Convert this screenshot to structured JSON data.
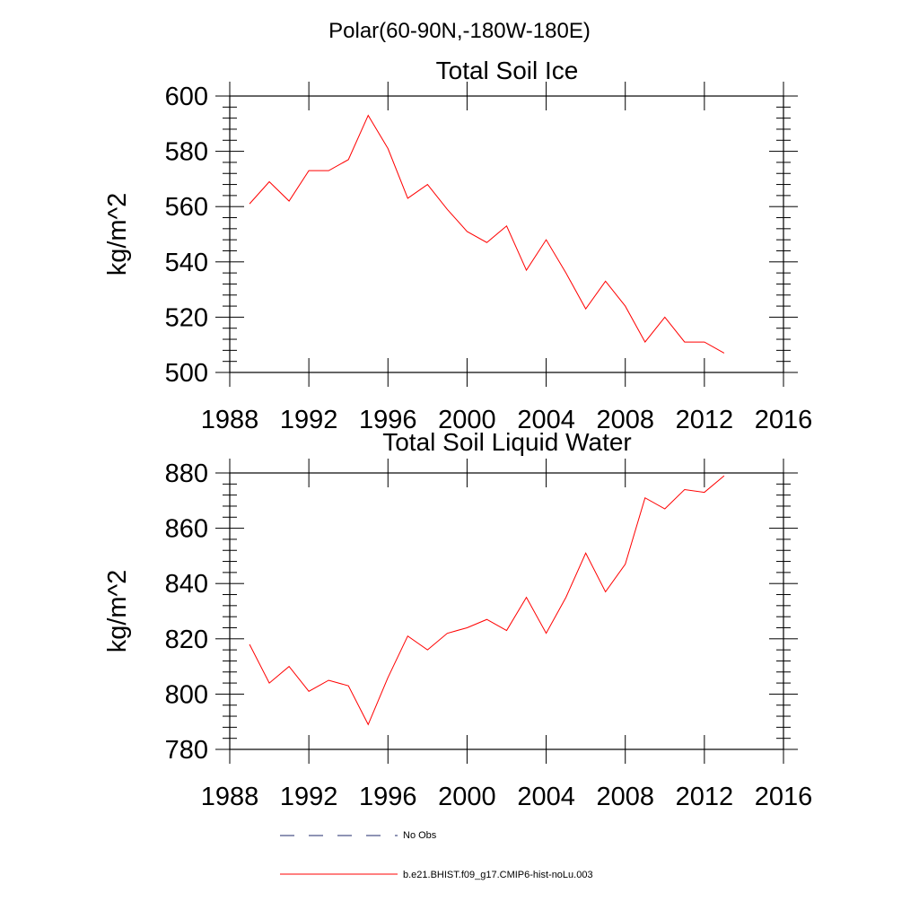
{
  "figure_title": "Polar(60-90N,-180W-180E)",
  "legend": {
    "items": [
      {
        "label": "No Obs",
        "color": "#1f2a6b",
        "dash": "dashed"
      },
      {
        "label": "b.e21.BHIST.f09_g17.CMIP6-hist-noLu.003",
        "color": "#ff0000",
        "dash": "solid"
      }
    ],
    "placement": "bottom-center"
  },
  "chart_data": [
    {
      "type": "line",
      "title": "Total Soil Ice",
      "xlabel": "",
      "ylabel": "kg/m^2",
      "xlim": [
        1988,
        2016
      ],
      "ylim": [
        500,
        600
      ],
      "xticks": [
        1988,
        1992,
        1996,
        2000,
        2004,
        2008,
        2012,
        2016
      ],
      "xtick_labels": [
        "1988",
        "1992",
        "1996",
        "2000",
        "2004",
        "2008",
        "2012",
        "2016"
      ],
      "yticks": [
        500,
        520,
        540,
        560,
        580,
        600
      ],
      "ytick_labels": [
        "500",
        "520",
        "540",
        "560",
        "580",
        "600"
      ],
      "grid": false,
      "x": [
        1989,
        1990,
        1991,
        1992,
        1993,
        1994,
        1995,
        1996,
        1997,
        1998,
        1999,
        2000,
        2001,
        2002,
        2003,
        2004,
        2005,
        2006,
        2007,
        2008,
        2009,
        2010,
        2011,
        2012,
        2013
      ],
      "series": [
        {
          "name": "b.e21.BHIST.f09_g17.CMIP6-hist-noLu.003",
          "color": "#ff0000",
          "values": [
            561,
            569,
            562,
            573,
            573,
            577,
            593,
            581,
            563,
            568,
            559,
            551,
            547,
            553,
            537,
            548,
            536,
            523,
            533,
            524,
            511,
            520,
            511,
            511,
            507
          ]
        }
      ]
    },
    {
      "type": "line",
      "title": "Total Soil Liquid Water",
      "xlabel": "",
      "ylabel": "kg/m^2",
      "xlim": [
        1988,
        2016
      ],
      "ylim": [
        780,
        880
      ],
      "xticks": [
        1988,
        1992,
        1996,
        2000,
        2004,
        2008,
        2012,
        2016
      ],
      "xtick_labels": [
        "1988",
        "1992",
        "1996",
        "2000",
        "2004",
        "2008",
        "2012",
        "2016"
      ],
      "yticks": [
        780,
        800,
        820,
        840,
        860,
        880
      ],
      "ytick_labels": [
        "780",
        "800",
        "820",
        "840",
        "860",
        "880"
      ],
      "grid": false,
      "x": [
        1989,
        1990,
        1991,
        1992,
        1993,
        1994,
        1995,
        1996,
        1997,
        1998,
        1999,
        2000,
        2001,
        2002,
        2003,
        2004,
        2005,
        2006,
        2007,
        2008,
        2009,
        2010,
        2011,
        2012,
        2013
      ],
      "series": [
        {
          "name": "b.e21.BHIST.f09_g17.CMIP6-hist-noLu.003",
          "color": "#ff0000",
          "values": [
            818,
            804,
            810,
            801,
            805,
            803,
            789,
            806,
            821,
            816,
            822,
            824,
            827,
            823,
            835,
            822,
            835,
            851,
            837,
            847,
            871,
            867,
            874,
            873,
            879
          ]
        }
      ]
    }
  ]
}
